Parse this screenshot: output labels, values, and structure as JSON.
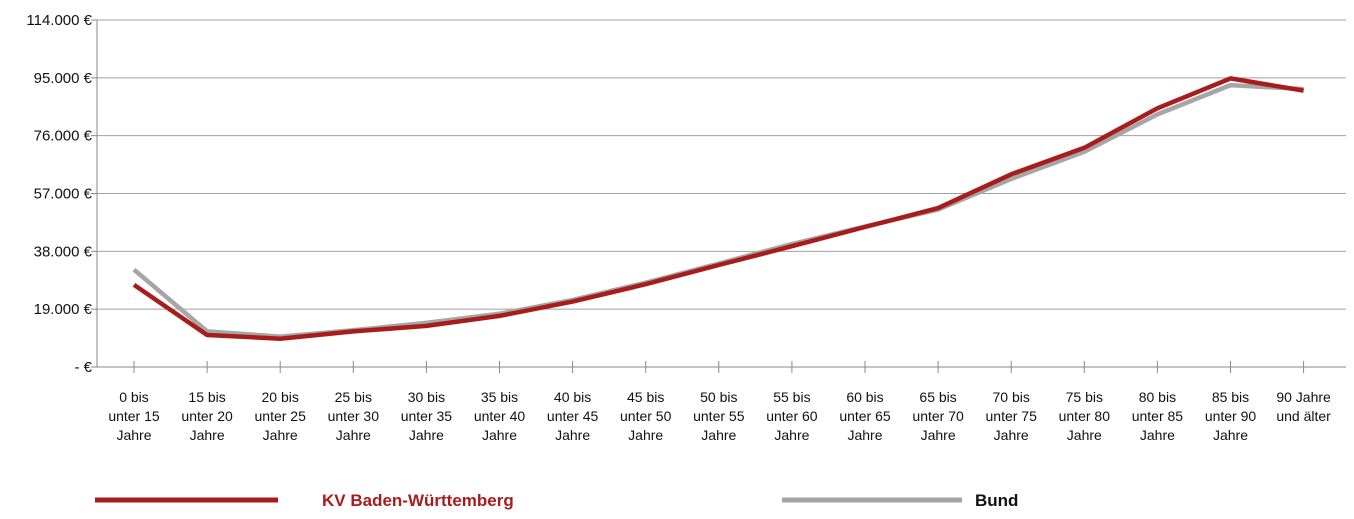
{
  "chart_data": {
    "type": "line",
    "categories": [
      [
        "0 bis",
        "unter 15",
        "Jahre"
      ],
      [
        "15 bis",
        "unter 20",
        "Jahre"
      ],
      [
        "20 bis",
        "unter 25",
        "Jahre"
      ],
      [
        "25 bis",
        "unter 30",
        "Jahre"
      ],
      [
        "30 bis",
        "unter 35",
        "Jahre"
      ],
      [
        "35 bis",
        "unter 40",
        "Jahre"
      ],
      [
        "40 bis",
        "unter 45",
        "Jahre"
      ],
      [
        "45 bis",
        "unter 50",
        "Jahre"
      ],
      [
        "50 bis",
        "unter 55",
        "Jahre"
      ],
      [
        "55 bis",
        "unter 60",
        "Jahre"
      ],
      [
        "60 bis",
        "unter 65",
        "Jahre"
      ],
      [
        "65 bis",
        "unter 70",
        "Jahre"
      ],
      [
        "70 bis",
        "unter 75",
        "Jahre"
      ],
      [
        "75 bis",
        "unter 80",
        "Jahre"
      ],
      [
        "80 bis",
        "unter 85",
        "Jahre"
      ],
      [
        "85 bis",
        "unter 90",
        "Jahre"
      ],
      [
        "90 Jahre",
        "und älter"
      ]
    ],
    "yticks": [
      0,
      19000,
      38000,
      57000,
      76000,
      95000,
      114000
    ],
    "ytick_labels": [
      "- €",
      "19.000 €",
      "38.000 €",
      "57.000 €",
      "76.000 €",
      "95.000 €",
      "114.000 €"
    ],
    "ylim": [
      0,
      114000
    ],
    "grid": true,
    "legend_position": "bottom",
    "series": [
      {
        "name": "KV Baden-Württemberg",
        "color": "#a81c1c",
        "values": [
          27000,
          10500,
          9300,
          11700,
          13500,
          16800,
          21500,
          27200,
          33500,
          39700,
          46000,
          52200,
          63300,
          72000,
          85000,
          94800,
          90800
        ]
      },
      {
        "name": "Bund",
        "color": "#a6a6a6",
        "values": [
          32000,
          11700,
          10000,
          12100,
          14500,
          17500,
          22000,
          27700,
          34000,
          40400,
          46200,
          51700,
          61800,
          70700,
          83000,
          92600,
          91300
        ]
      }
    ]
  }
}
